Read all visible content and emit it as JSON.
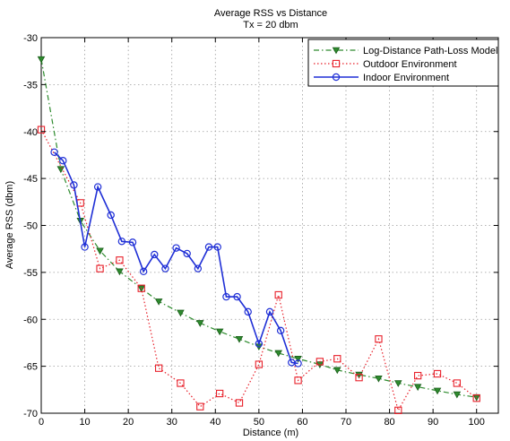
{
  "chart_data": {
    "type": "line",
    "title": "Average RSS vs Distance",
    "subtitle": "Tx = 20 dbm",
    "xlabel": "Distance (m)",
    "ylabel": "Average RSS (dbm)",
    "xlim": [
      0,
      105
    ],
    "ylim": [
      -70,
      -30
    ],
    "xticks": [
      0,
      10,
      20,
      30,
      40,
      50,
      60,
      70,
      80,
      90,
      100
    ],
    "yticks": [
      -30,
      -35,
      -40,
      -45,
      -50,
      -55,
      -60,
      -65,
      -70
    ],
    "grid": true,
    "legend_position": "top-right",
    "series": [
      {
        "name": "Log-Distance Path-Loss Model",
        "color": "#2e8b2e",
        "marker": "triangle-down",
        "line_style": "dash-dot",
        "x": [
          0,
          4.5,
          9,
          13.5,
          18,
          23,
          27,
          32,
          36.5,
          41,
          45.5,
          50,
          54.5,
          59,
          64,
          68,
          73,
          77.5,
          82,
          86.5,
          91,
          95.5,
          100
        ],
        "y": [
          -32.3,
          -44.0,
          -49.5,
          -52.7,
          -54.9,
          -56.7,
          -58.1,
          -59.3,
          -60.4,
          -61.3,
          -62.1,
          -62.9,
          -63.6,
          -64.2,
          -64.8,
          -65.4,
          -65.9,
          -66.3,
          -66.8,
          -67.2,
          -67.6,
          -68.0,
          -68.3
        ]
      },
      {
        "name": "Outdoor Environment",
        "color": "#e8202a",
        "marker": "square",
        "line_style": "dotted",
        "x": [
          0,
          9,
          13.5,
          18,
          23,
          27,
          32,
          36.5,
          41,
          45.5,
          50,
          54.5,
          59,
          64,
          68,
          73,
          77.5,
          82,
          86.5,
          91,
          95.5,
          100
        ],
        "y": [
          -39.8,
          -47.6,
          -54.6,
          -53.7,
          -56.7,
          -65.2,
          -66.8,
          -69.3,
          -67.9,
          -68.9,
          -64.8,
          -57.4,
          -66.5,
          -64.5,
          -64.2,
          -66.2,
          -62.1,
          -69.7,
          -66.0,
          -65.8,
          -66.8,
          -68.4
        ]
      },
      {
        "name": "Indoor Environment",
        "color": "#1f2fd6",
        "marker": "circle",
        "line_style": "solid",
        "x": [
          3,
          5,
          7.5,
          10,
          13,
          16,
          18.5,
          21,
          23.5,
          26,
          28.5,
          31,
          33.5,
          36,
          38.5,
          40.5,
          42.5,
          45,
          47.5,
          50,
          52.5,
          55,
          57.5,
          59
        ],
        "y": [
          -42.2,
          -43.1,
          -45.7,
          -52.3,
          -45.9,
          -48.9,
          -51.7,
          -51.8,
          -54.9,
          -53.1,
          -54.6,
          -52.4,
          -53.0,
          -54.6,
          -52.3,
          -52.3,
          -57.6,
          -57.6,
          -59.2,
          -62.6,
          -59.2,
          -61.2,
          -64.6,
          -64.7
        ]
      }
    ]
  }
}
